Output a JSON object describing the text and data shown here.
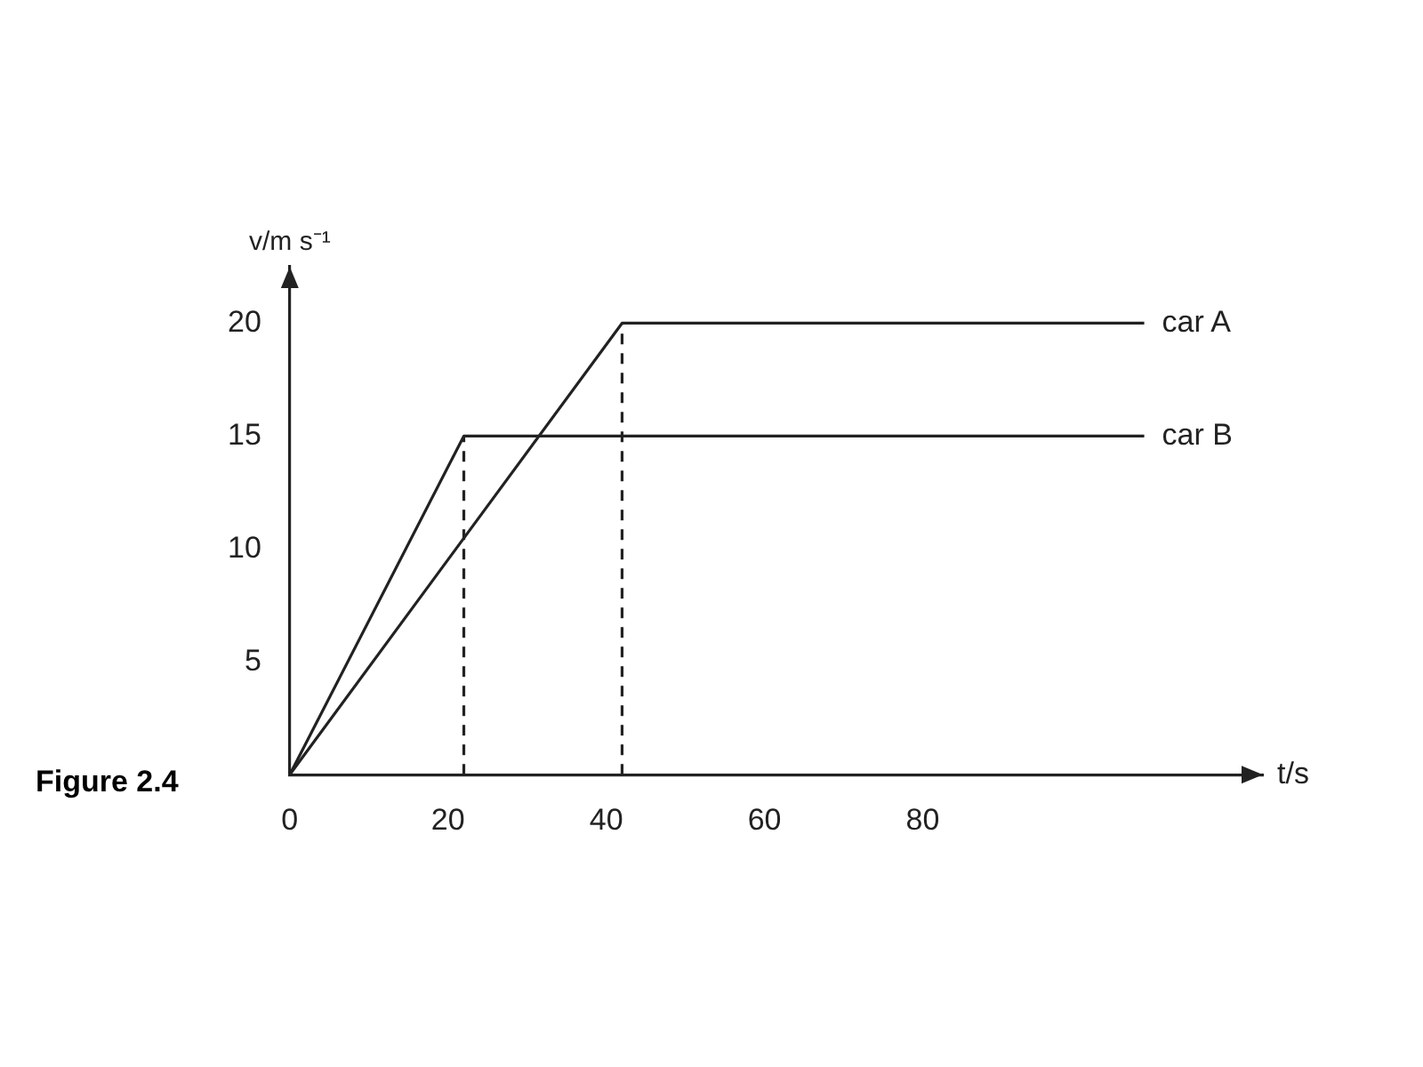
{
  "chart_data": {
    "type": "line",
    "xlabel": "t/s",
    "ylabel": "v/m s⁻¹",
    "annotations": [
      "Figure 2.4"
    ],
    "xlim": [
      0,
      123
    ],
    "ylim": [
      0,
      22.5
    ],
    "xticks": [
      {
        "value": 0,
        "label": "0"
      },
      20,
      40,
      60,
      80
    ],
    "yticks": [
      5,
      10,
      15,
      20
    ],
    "grid": false,
    "legend": false,
    "marker": "none",
    "series": [
      {
        "name": "car A",
        "color": "#222222",
        "x": [
          0,
          42,
          108
        ],
        "values": [
          0,
          20,
          20
        ]
      },
      {
        "name": "car B",
        "color": "#222222",
        "x": [
          0,
          22,
          108
        ],
        "values": [
          0,
          15,
          15
        ]
      },
      {
        "color": "#222222",
        "x": [
          22,
          22
        ],
        "values": [
          0,
          15
        ],
        "line_style": "dashed"
      },
      {
        "color": "#222222",
        "x": [
          42,
          42
        ],
        "values": [
          0,
          20
        ],
        "line_style": "dashed"
      }
    ]
  }
}
